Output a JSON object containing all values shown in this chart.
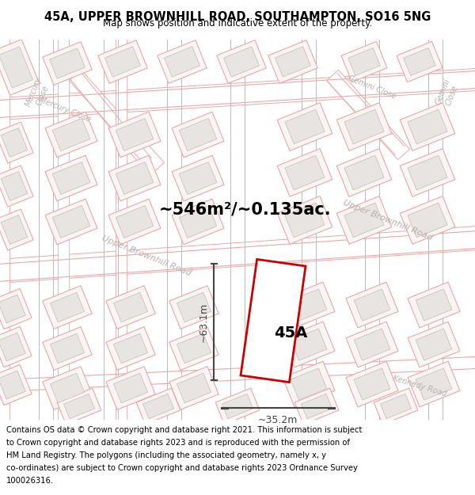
{
  "title_line1": "45A, UPPER BROWNHILL ROAD, SOUTHAMPTON, SO16 5NG",
  "title_line2": "Map shows position and indicative extent of the property.",
  "area_label": "~546m²/~0.135ac.",
  "property_label": "45A",
  "dim_height": "~63.1m",
  "dim_width": "~35.2m",
  "footer_text": "Contains OS data © Crown copyright and database right 2021. This information is subject to Crown copyright and database rights 2023 and is reproduced with the permission of HM Land Registry. The polygons (including the associated geometry, namely x, y co-ordinates) are subject to Crown copyright and database rights 2023 Ordnance Survey 100026316.",
  "map_bg": "#ffffff",
  "road_line_color": "#e8a8a8",
  "building_fill": "#e8e4e2",
  "building_edge": "#d0c0be",
  "building_inner_fill": "#f0eceb",
  "building_inner_edge": "#d8c8c6",
  "property_fill": "#ffffff",
  "property_edge": "#cc0000",
  "dim_color": "#444444",
  "text_color": "#000000",
  "street_label_color": "#b8b0ae",
  "title_bg": "#ffffff",
  "footer_bg": "#ffffff"
}
